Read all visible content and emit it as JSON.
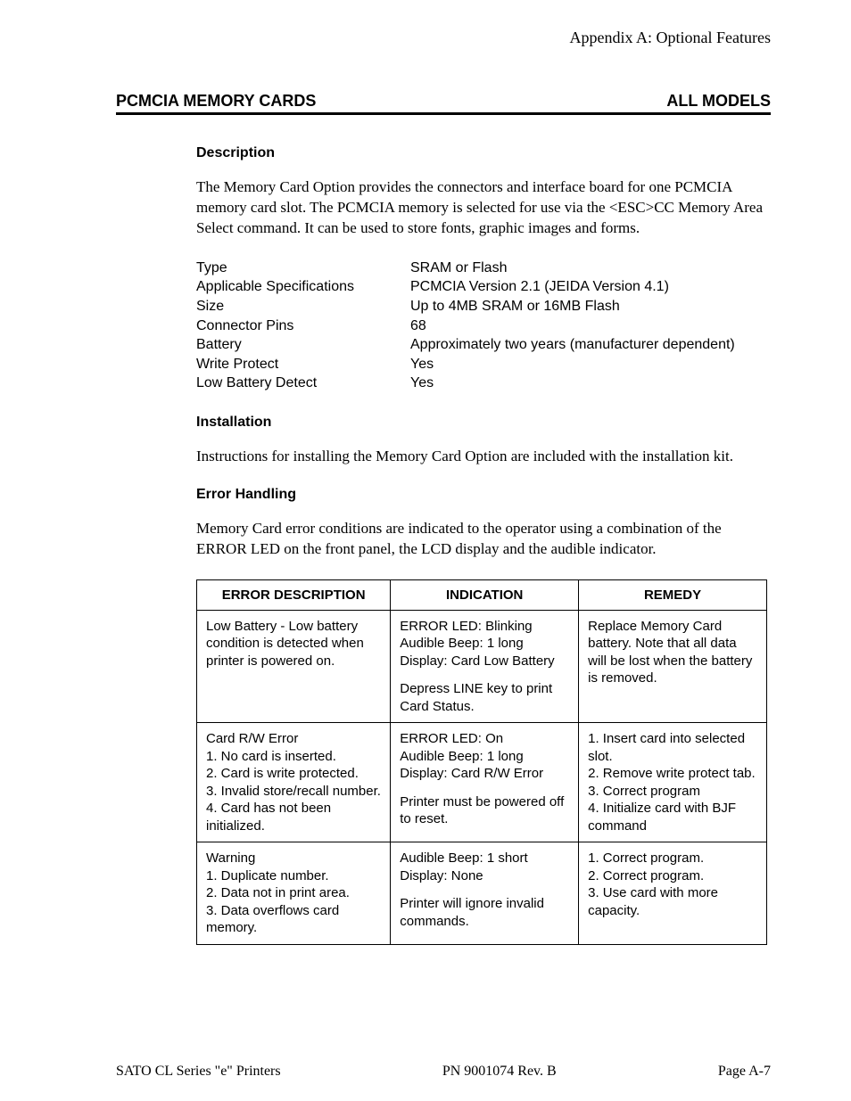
{
  "header": {
    "appendix": "Appendix A: Optional Features"
  },
  "section": {
    "left": "PCMCIA MEMORY CARDS",
    "right": "ALL MODELS"
  },
  "description": {
    "heading": "Description",
    "body": "The Memory Card Option provides the connectors and interface board for one PCMCIA memory card slot. The PCMCIA memory is selected for use via the <ESC>CC Memory Area Select command. It can be used to store fonts, graphic images and forms."
  },
  "specs": [
    {
      "label": "Type",
      "value": "SRAM or Flash"
    },
    {
      "label": "Applicable Specifications",
      "value": "PCMCIA Version 2.1 (JEIDA Version 4.1)"
    },
    {
      "label": "Size",
      "value": "Up to 4MB SRAM or 16MB Flash"
    },
    {
      "label": "Connector Pins",
      "value": "68"
    },
    {
      "label": "Battery",
      "value": "Approximately two years (manufacturer dependent)"
    },
    {
      "label": "Write Protect",
      "value": "Yes"
    },
    {
      "label": "Low Battery Detect",
      "value": "Yes"
    }
  ],
  "installation": {
    "heading": "Installation",
    "body": "Instructions for installing the Memory Card Option are included with the installation kit."
  },
  "error_handling": {
    "heading": "Error Handling",
    "body": "Memory Card error conditions are indicated to the operator using a combination of the ERROR LED on the front panel, the LCD display and the audible indicator."
  },
  "table": {
    "headers": [
      "ERROR DESCRIPTION",
      "INDICATION",
      "REMEDY"
    ],
    "rows": [
      {
        "desc": "Low Battery - Low battery condition is detected when printer is powered on.",
        "ind1": "ERROR LED: Blinking\nAudible Beep: 1 long\nDisplay: Card Low Battery",
        "ind2": "Depress LINE key to print Card Status.",
        "rem": "Replace Memory Card battery. Note that all data will be lost when the battery is removed."
      },
      {
        "desc": "Card R/W Error\n1. No card is inserted.\n2. Card is write protected.\n3. Invalid store/recall number.\n4. Card has not been initialized.",
        "ind1": "ERROR LED: On\nAudible Beep: 1 long\nDisplay: Card R/W Error",
        "ind2": "Printer must be powered off to reset.",
        "rem": "1. Insert card into selected slot.\n2. Remove write protect tab.\n3. Correct program\n4. Initialize card with BJF command"
      },
      {
        "desc": "Warning\n1. Duplicate number.\n2. Data not in print area.\n3. Data overflows card memory.",
        "ind1": "Audible Beep: 1 short\nDisplay: None",
        "ind2": "Printer will ignore invalid commands.",
        "rem": "1. Correct program.\n2. Correct program.\n3. Use card with more capacity."
      }
    ]
  },
  "footer": {
    "left": "SATO CL Series \"e\" Printers",
    "center": "PN 9001074 Rev. B",
    "right": "Page A-7"
  }
}
